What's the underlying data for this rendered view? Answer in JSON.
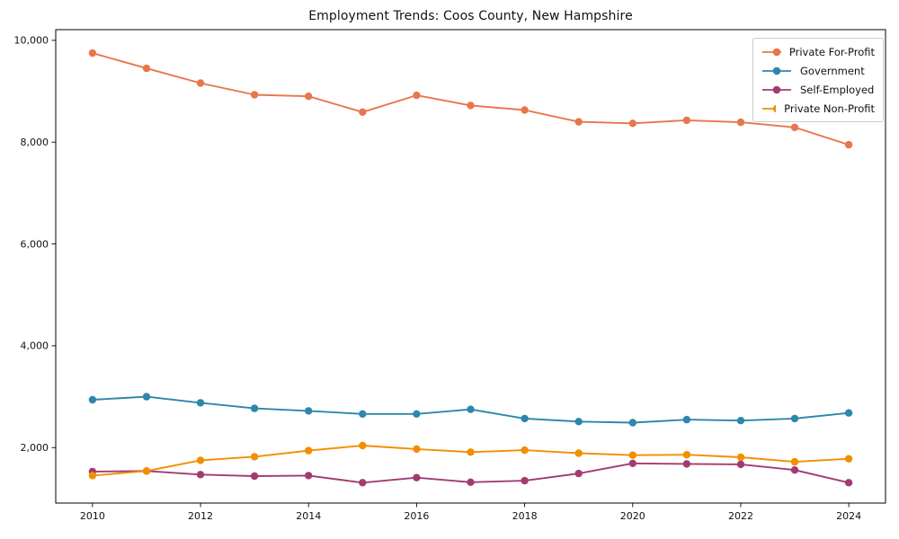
{
  "chart_data": {
    "type": "line",
    "title": "Employment Trends: Coos County, New Hampshire",
    "xlabel": "",
    "ylabel": "",
    "grid": false,
    "legend_position": "upper right",
    "x": [
      2010,
      2011,
      2012,
      2013,
      2014,
      2015,
      2016,
      2017,
      2018,
      2019,
      2020,
      2021,
      2022,
      2023,
      2024
    ],
    "x_ticks": [
      {
        "value": 2010,
        "label": "2010"
      },
      {
        "value": 2012,
        "label": "2012"
      },
      {
        "value": 2014,
        "label": "2014"
      },
      {
        "value": 2016,
        "label": "2016"
      },
      {
        "value": 2018,
        "label": "2018"
      },
      {
        "value": 2020,
        "label": "2020"
      },
      {
        "value": 2022,
        "label": "2022"
      },
      {
        "value": 2024,
        "label": "2024"
      }
    ],
    "y_ticks": [
      {
        "value": 2000,
        "label": "2,000"
      },
      {
        "value": 4000,
        "label": "4,000"
      },
      {
        "value": 6000,
        "label": "6,000"
      },
      {
        "value": 8000,
        "label": "8,000"
      },
      {
        "value": 10000,
        "label": "10,000"
      }
    ],
    "xlim": [
      2009.32,
      2024.68
    ],
    "ylim": [
      910,
      10210
    ],
    "series": [
      {
        "name": "Private For-Profit",
        "color": "#E8764B",
        "values": [
          9750,
          9450,
          9160,
          8930,
          8900,
          8590,
          8920,
          8720,
          8630,
          8400,
          8370,
          8430,
          8390,
          8290,
          7950
        ]
      },
      {
        "name": "Government",
        "color": "#2E86AB",
        "values": [
          2940,
          3000,
          2880,
          2770,
          2720,
          2660,
          2660,
          2750,
          2570,
          2510,
          2490,
          2550,
          2530,
          2570,
          2680
        ]
      },
      {
        "name": "Self-Employed",
        "color": "#A23B72",
        "values": [
          1530,
          1540,
          1470,
          1440,
          1450,
          1310,
          1410,
          1320,
          1350,
          1490,
          1690,
          1680,
          1670,
          1560,
          1310
        ]
      },
      {
        "name": "Private Non-Profit",
        "color": "#F18F01",
        "values": [
          1450,
          1540,
          1750,
          1820,
          1940,
          2040,
          1970,
          1910,
          1950,
          1890,
          1850,
          1860,
          1810,
          1720,
          1780
        ]
      }
    ]
  }
}
